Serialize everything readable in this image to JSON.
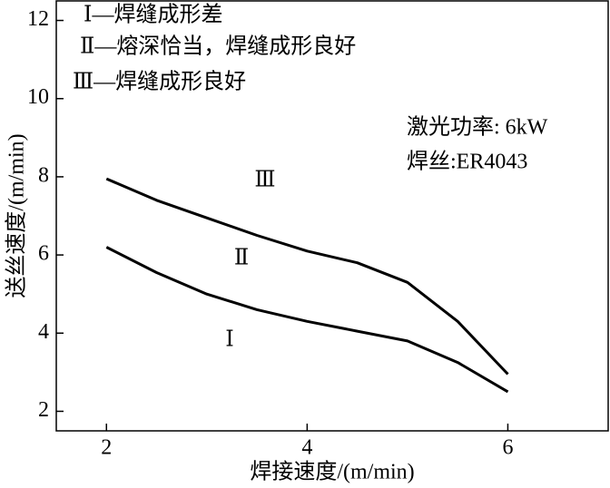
{
  "chart_data": {
    "type": "line",
    "xlabel": "焊接速度/(m/min)",
    "ylabel": "送丝速度/(m/min)",
    "notes": [
      "Ⅰ—焊缝成形差",
      "Ⅱ—熔深恰当，焊缝成形良好",
      "Ⅲ—焊缝成形良好"
    ],
    "annotations": [
      "激光功率: 6kW",
      "焊丝:ER4043"
    ],
    "region_labels": [
      "Ⅲ",
      "Ⅱ",
      "Ⅰ"
    ],
    "x": [
      2,
      2.5,
      3,
      3.5,
      4,
      4.5,
      5,
      5.5,
      6
    ],
    "series": [
      {
        "color": "#000000",
        "values": [
          7.95,
          7.4,
          6.95,
          6.5,
          6.1,
          5.8,
          5.3,
          4.3,
          2.95
        ]
      },
      {
        "color": "#000000",
        "values": [
          6.2,
          5.55,
          5.0,
          4.6,
          4.3,
          4.05,
          3.8,
          3.25,
          2.5
        ]
      }
    ],
    "xlim": [
      1.5,
      7
    ],
    "ylim": [
      1.5,
      12.5
    ],
    "xticks": [
      2,
      4,
      6
    ],
    "yticks": [
      2,
      4,
      6,
      8,
      10,
      12
    ]
  }
}
